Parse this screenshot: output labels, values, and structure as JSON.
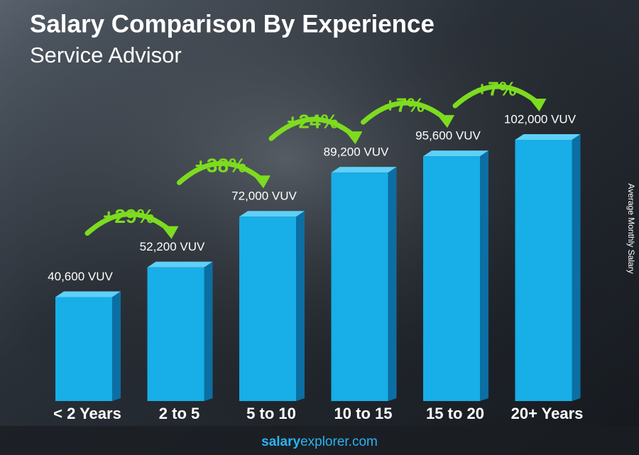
{
  "chart_data": {
    "type": "bar",
    "title": "Salary Comparison By Experience",
    "subtitle": "Service Advisor",
    "y_axis_label": "Average Monthly Salary",
    "categories": [
      "< 2 Years",
      "2 to 5",
      "5 to 10",
      "10 to 15",
      "15 to 20",
      "20+ Years"
    ],
    "values": [
      40600,
      52200,
      72000,
      89200,
      95600,
      102000
    ],
    "value_labels": [
      "40,600 VUV",
      "52,200 VUV",
      "72,000 VUV",
      "89,200 VUV",
      "95,600 VUV",
      "102,000 VUV"
    ],
    "annotations": [
      "+29%",
      "+38%",
      "+24%",
      "+7%",
      "+7%"
    ],
    "color": "#18aee8",
    "annotation_color": "#7ddc1f",
    "footer": {
      "bold": "salary",
      "rest": "explorer.com"
    }
  }
}
